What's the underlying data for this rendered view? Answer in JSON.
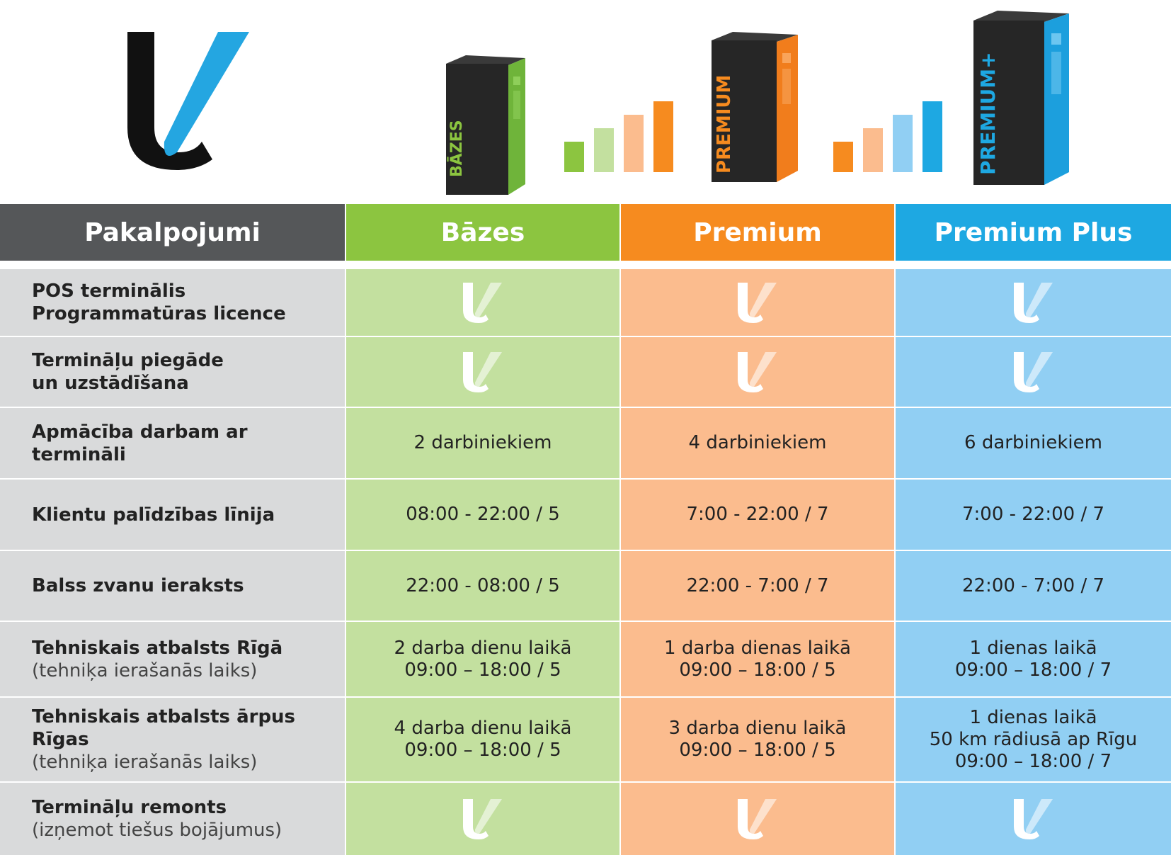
{
  "boxes": {
    "basic_label": "BĀZES",
    "premium_label": "PREMIUM",
    "premium_plus_label": "PREMIUM+"
  },
  "table": {
    "headers": [
      "Pakalpojumi",
      "Bāzes",
      "Premium",
      "Premium Plus"
    ],
    "rows": [
      {
        "service": [
          "POS terminālis",
          "Programmatūras licence"
        ],
        "sub": "",
        "values": [
          "check",
          "check",
          "check"
        ]
      },
      {
        "service": [
          "Termināļu piegāde",
          "un uzstādīšana"
        ],
        "sub": "",
        "values": [
          "check",
          "check",
          "check"
        ]
      },
      {
        "service": [
          "Apmācība darbam ar termināli"
        ],
        "sub": "",
        "values": [
          [
            "2 darbiniekiem"
          ],
          [
            "4 darbiniekiem"
          ],
          [
            "6 darbiniekiem"
          ]
        ]
      },
      {
        "service": [
          "Klientu palīdzības līnija"
        ],
        "sub": "",
        "values": [
          [
            "08:00 - 22:00 / 5"
          ],
          [
            "7:00 - 22:00 / 7"
          ],
          [
            "7:00 - 22:00 / 7"
          ]
        ]
      },
      {
        "service": [
          "Balss zvanu ieraksts"
        ],
        "sub": "",
        "values": [
          [
            "22:00 - 08:00 / 5"
          ],
          [
            "22:00 - 7:00 / 7"
          ],
          [
            "22:00 - 7:00 / 7"
          ]
        ]
      },
      {
        "service": [
          "Tehniskais atbalsts Rīgā"
        ],
        "sub": "(tehniķa ierašanās laiks)",
        "values": [
          [
            "2 darba dienu laikā",
            "09:00 – 18:00 / 5"
          ],
          [
            "1 darba dienas laikā",
            "09:00 – 18:00 / 5"
          ],
          [
            "1 dienas laikā",
            "09:00 – 18:00 / 7"
          ]
        ]
      },
      {
        "service": [
          "Tehniskais atbalsts ārpus Rīgas"
        ],
        "sub": "(tehniķa ierašanās laiks)",
        "values": [
          [
            "4 darba dienu laikā",
            "09:00 – 18:00 / 5"
          ],
          [
            "3 darba dienu laikā",
            "09:00 – 18:00 / 5"
          ],
          [
            "1 dienas laikā",
            "50 km rādiusā ap Rīgu",
            "09:00 – 18:00 / 7"
          ]
        ]
      },
      {
        "service": [
          "Termināļu remonts"
        ],
        "sub": "(izņemot tiešus bojājumus)",
        "values": [
          "check",
          "check",
          "check"
        ]
      }
    ]
  },
  "colors": {
    "header_dark": "#555759",
    "green": "#8cc540",
    "green_light": "#c3e09f",
    "orange": "#f68b1f",
    "orange_light": "#fbbc8e",
    "blue": "#1ea8e2",
    "blue_light": "#91cff3",
    "grey_light": "#d9dadb",
    "logo_black": "#111111",
    "logo_blue": "#24a6e1"
  }
}
